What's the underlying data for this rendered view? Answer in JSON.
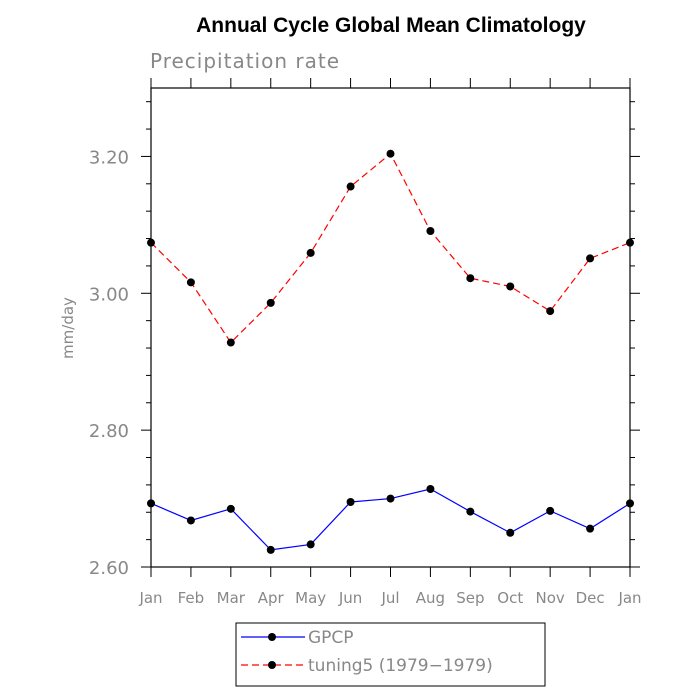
{
  "chart_data": {
    "type": "line",
    "title": "Annual Cycle Global Mean Climatology",
    "subtitle": "Precipitation rate",
    "xlabel": "",
    "ylabel": "mm/day",
    "categories": [
      "Jan",
      "Feb",
      "Mar",
      "Apr",
      "May",
      "Jun",
      "Jul",
      "Aug",
      "Sep",
      "Oct",
      "Nov",
      "Dec",
      "Jan"
    ],
    "ylim": [
      2.6,
      3.3
    ],
    "yticks": [
      2.6,
      2.8,
      3.0,
      3.2
    ],
    "ytick_labels": [
      "2.60",
      "2.80",
      "3.00",
      "3.20"
    ],
    "grid": false,
    "legend_position": "bottom",
    "series": [
      {
        "name": "GPCP",
        "color": "#0000ff",
        "dash": "solid",
        "values": [
          2.693,
          2.668,
          2.685,
          2.625,
          2.633,
          2.695,
          2.7,
          2.714,
          2.681,
          2.65,
          2.682,
          2.656,
          2.693
        ]
      },
      {
        "name": "tuning5 (1979−1979)",
        "color": "#ff0000",
        "dash": "dashed",
        "values": [
          3.074,
          3.016,
          2.928,
          2.986,
          3.059,
          3.156,
          3.204,
          3.091,
          3.022,
          3.01,
          2.974,
          3.051,
          3.074
        ]
      }
    ]
  }
}
